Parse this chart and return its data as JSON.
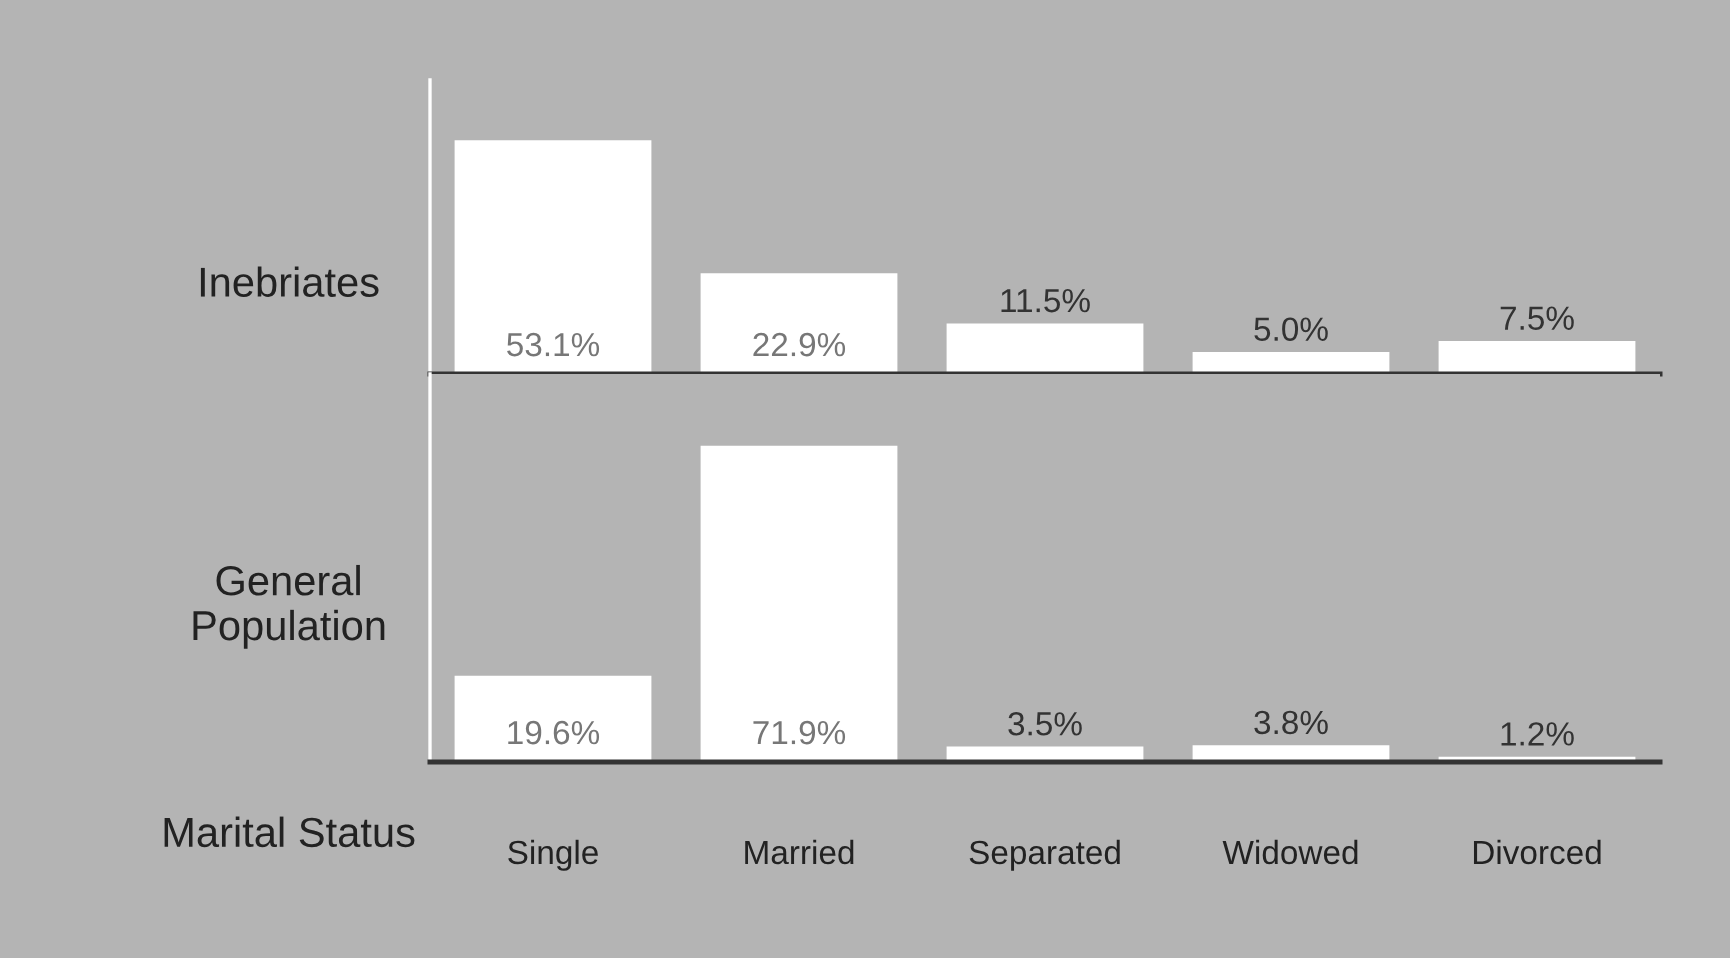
{
  "chart_data": [
    {
      "type": "bar",
      "ylabel": "Inebriates",
      "categories": [
        null,
        null,
        null,
        null,
        null
      ],
      "color": "#ffffff",
      "values": [
        53.1,
        22.9,
        11.5,
        5.0,
        7.5
      ],
      "value_labels": [
        "53.1%",
        "22.9%",
        "11.5%",
        "5.0%",
        "7.5%"
      ],
      "tick_labels": false,
      "grid": false,
      "legend": false
    },
    {
      "type": "bar",
      "ylabel": "General\nPopulation",
      "xlabel": "Marital Status",
      "categories": [
        "Single",
        "Married",
        "Separated",
        "Widowed",
        "Divorced"
      ],
      "color": "#ffffff",
      "values": [
        19.6,
        71.9,
        3.5,
        3.8,
        1.2
      ],
      "value_labels": [
        "19.6%",
        "71.9%",
        "3.5%",
        "3.8%",
        "1.2%"
      ],
      "tick_labels": "x",
      "grid": false,
      "legend": false
    }
  ]
}
